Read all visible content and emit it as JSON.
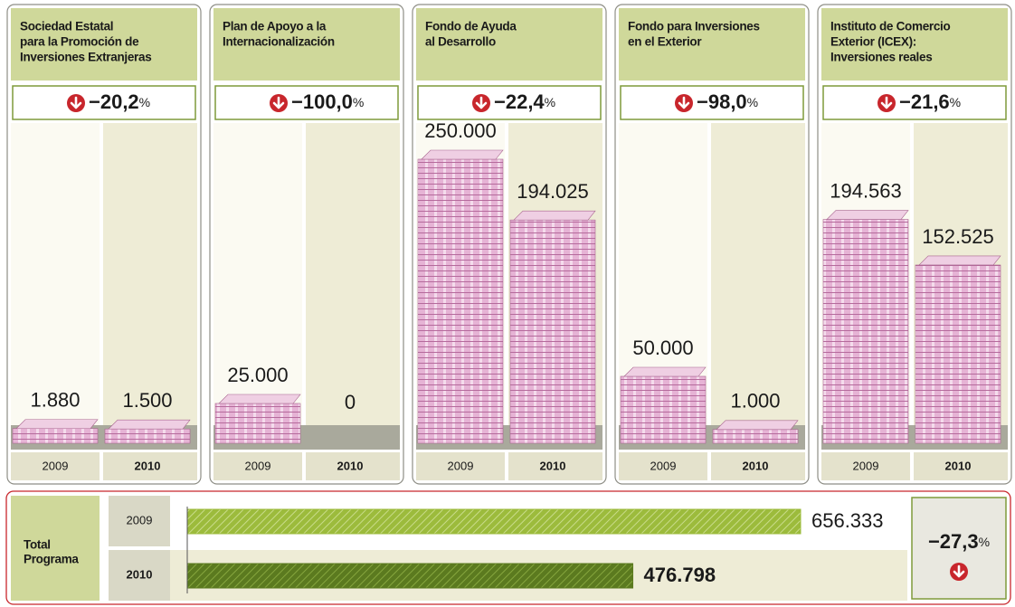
{
  "chart_data": {
    "type": "pictogram-bar",
    "years": [
      "2009",
      "2010"
    ],
    "panels": [
      {
        "title": [
          "Sociedad Estatal",
          "para la Promoción de",
          "Inversiones Extranjeras"
        ],
        "change": "−20,2%",
        "values": [
          1880,
          1500
        ],
        "value_labels": [
          "1.880",
          "1.500"
        ]
      },
      {
        "title": [
          "Plan de Apoyo a la",
          "Internacionalización"
        ],
        "change": "−100,0%",
        "values": [
          25000,
          0
        ],
        "value_labels": [
          "25.000",
          "0"
        ]
      },
      {
        "title": [
          "Fondo de Ayuda",
          "al Desarrollo"
        ],
        "change": "−22,4%",
        "values": [
          250000,
          194025
        ],
        "value_labels": [
          "250.000",
          "194.025"
        ]
      },
      {
        "title": [
          "Fondo para Inversiones",
          "en el Exterior"
        ],
        "change": "−98,0%",
        "values": [
          50000,
          1000
        ],
        "value_labels": [
          "50.000",
          "1.000"
        ]
      },
      {
        "title": [
          "Instituto de Comercio",
          "Exterior (ICEX):",
          "Inversiones reales"
        ],
        "change": "−21,6%",
        "values": [
          194563,
          152525
        ],
        "value_labels": [
          "194.563",
          "152.525"
        ]
      }
    ],
    "total": {
      "title": [
        "Total",
        "Programa"
      ],
      "change": "−27,3%",
      "values": [
        656333,
        476798
      ],
      "value_labels": [
        "656.333",
        "476.798"
      ],
      "colors": [
        "#9cbb3c",
        "#5b7a1f"
      ]
    }
  }
}
